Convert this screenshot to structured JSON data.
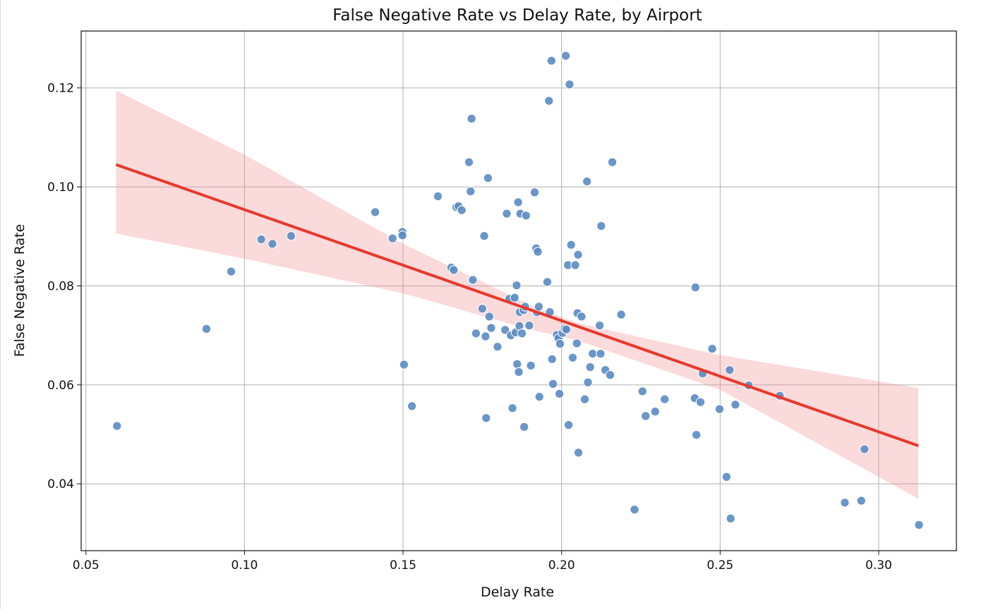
{
  "chart_data": {
    "type": "scatter",
    "title": "False Negative Rate vs Delay Rate, by Airport",
    "xlabel": "Delay Rate",
    "ylabel": "False Negative Rate",
    "xlim": [
      0.0485,
      0.3245
    ],
    "ylim": [
      0.0265,
      0.1315
    ],
    "xticks": [
      0.05,
      0.1,
      0.15,
      0.2,
      0.25,
      0.3
    ],
    "xtick_labels": [
      "0.05",
      "0.10",
      "0.15",
      "0.20",
      "0.25",
      "0.30"
    ],
    "yticks": [
      0.04,
      0.06,
      0.08,
      0.1,
      0.12
    ],
    "ytick_labels": [
      "0.04",
      "0.06",
      "0.08",
      "0.10",
      "0.12"
    ],
    "grid": true,
    "colors": {
      "points": "#5a8bc2",
      "point_edge": "#ffffff",
      "regression": "#e8392c",
      "band": "#f08c8c"
    },
    "regression": {
      "x": [
        0.0595,
        0.3125
      ],
      "y": [
        0.1045,
        0.0477
      ],
      "ci_upper": [
        0.1195,
        0.0594
      ],
      "ci_lower": [
        0.0906,
        0.037
      ],
      "band_x": [
        0.0595,
        0.1,
        0.15,
        0.19,
        0.205,
        0.25,
        0.3125
      ],
      "band_upper": [
        0.1195,
        0.1065,
        0.0885,
        0.0762,
        0.0725,
        0.066,
        0.0594
      ],
      "band_lower": [
        0.0906,
        0.0855,
        0.0785,
        0.0712,
        0.069,
        0.059,
        0.037
      ]
    },
    "points": [
      {
        "x": 0.0598,
        "y": 0.0517
      },
      {
        "x": 0.088,
        "y": 0.0713
      },
      {
        "x": 0.0958,
        "y": 0.0829
      },
      {
        "x": 0.1053,
        "y": 0.0894
      },
      {
        "x": 0.1088,
        "y": 0.0885
      },
      {
        "x": 0.1147,
        "y": 0.0901
      },
      {
        "x": 0.1412,
        "y": 0.0949
      },
      {
        "x": 0.1467,
        "y": 0.0896
      },
      {
        "x": 0.1498,
        "y": 0.0909
      },
      {
        "x": 0.1498,
        "y": 0.0902
      },
      {
        "x": 0.1503,
        "y": 0.0641
      },
      {
        "x": 0.1528,
        "y": 0.0557
      },
      {
        "x": 0.161,
        "y": 0.0981
      },
      {
        "x": 0.1652,
        "y": 0.0837
      },
      {
        "x": 0.166,
        "y": 0.0832
      },
      {
        "x": 0.1668,
        "y": 0.0959
      },
      {
        "x": 0.1675,
        "y": 0.0961
      },
      {
        "x": 0.1685,
        "y": 0.0953
      },
      {
        "x": 0.1708,
        "y": 0.105
      },
      {
        "x": 0.1713,
        "y": 0.0991
      },
      {
        "x": 0.1716,
        "y": 0.1138
      },
      {
        "x": 0.172,
        "y": 0.0812
      },
      {
        "x": 0.173,
        "y": 0.0704
      },
      {
        "x": 0.175,
        "y": 0.0754
      },
      {
        "x": 0.1756,
        "y": 0.0901
      },
      {
        "x": 0.176,
        "y": 0.0698
      },
      {
        "x": 0.1762,
        "y": 0.0533
      },
      {
        "x": 0.1768,
        "y": 0.1018
      },
      {
        "x": 0.1772,
        "y": 0.0738
      },
      {
        "x": 0.1778,
        "y": 0.0715
      },
      {
        "x": 0.1798,
        "y": 0.0677
      },
      {
        "x": 0.1822,
        "y": 0.0711
      },
      {
        "x": 0.1827,
        "y": 0.0946
      },
      {
        "x": 0.1835,
        "y": 0.0774
      },
      {
        "x": 0.184,
        "y": 0.07
      },
      {
        "x": 0.1845,
        "y": 0.0553
      },
      {
        "x": 0.1852,
        "y": 0.0776
      },
      {
        "x": 0.1855,
        "y": 0.0706
      },
      {
        "x": 0.1858,
        "y": 0.0801
      },
      {
        "x": 0.186,
        "y": 0.0642
      },
      {
        "x": 0.1863,
        "y": 0.0969
      },
      {
        "x": 0.1865,
        "y": 0.0626
      },
      {
        "x": 0.1867,
        "y": 0.0719
      },
      {
        "x": 0.1868,
        "y": 0.0747
      },
      {
        "x": 0.187,
        "y": 0.0946
      },
      {
        "x": 0.1875,
        "y": 0.0704
      },
      {
        "x": 0.188,
        "y": 0.0751
      },
      {
        "x": 0.1882,
        "y": 0.0515
      },
      {
        "x": 0.1885,
        "y": 0.0758
      },
      {
        "x": 0.1888,
        "y": 0.0942
      },
      {
        "x": 0.1898,
        "y": 0.072
      },
      {
        "x": 0.1903,
        "y": 0.0639
      },
      {
        "x": 0.1915,
        "y": 0.0989
      },
      {
        "x": 0.192,
        "y": 0.0876
      },
      {
        "x": 0.1922,
        "y": 0.0747
      },
      {
        "x": 0.1925,
        "y": 0.0869
      },
      {
        "x": 0.1928,
        "y": 0.0758
      },
      {
        "x": 0.193,
        "y": 0.0576
      },
      {
        "x": 0.1955,
        "y": 0.0808
      },
      {
        "x": 0.196,
        "y": 0.1174
      },
      {
        "x": 0.1963,
        "y": 0.0747
      },
      {
        "x": 0.1968,
        "y": 0.1255
      },
      {
        "x": 0.197,
        "y": 0.0652
      },
      {
        "x": 0.1973,
        "y": 0.0602
      },
      {
        "x": 0.1985,
        "y": 0.0701
      },
      {
        "x": 0.199,
        "y": 0.0694
      },
      {
        "x": 0.1993,
        "y": 0.0582
      },
      {
        "x": 0.1995,
        "y": 0.0683
      },
      {
        "x": 0.2003,
        "y": 0.0705
      },
      {
        "x": 0.201,
        "y": 0.0714
      },
      {
        "x": 0.2013,
        "y": 0.1265
      },
      {
        "x": 0.2015,
        "y": 0.0712
      },
      {
        "x": 0.202,
        "y": 0.0842
      },
      {
        "x": 0.2022,
        "y": 0.0519
      },
      {
        "x": 0.2025,
        "y": 0.1207
      },
      {
        "x": 0.203,
        "y": 0.0883
      },
      {
        "x": 0.2035,
        "y": 0.0655
      },
      {
        "x": 0.2043,
        "y": 0.0842
      },
      {
        "x": 0.2048,
        "y": 0.0684
      },
      {
        "x": 0.205,
        "y": 0.0745
      },
      {
        "x": 0.2052,
        "y": 0.0863
      },
      {
        "x": 0.2053,
        "y": 0.0463
      },
      {
        "x": 0.2063,
        "y": 0.0738
      },
      {
        "x": 0.2073,
        "y": 0.0571
      },
      {
        "x": 0.208,
        "y": 0.1011
      },
      {
        "x": 0.2083,
        "y": 0.0605
      },
      {
        "x": 0.209,
        "y": 0.0636
      },
      {
        "x": 0.2098,
        "y": 0.0663
      },
      {
        "x": 0.212,
        "y": 0.072
      },
      {
        "x": 0.2123,
        "y": 0.0663
      },
      {
        "x": 0.2125,
        "y": 0.0921
      },
      {
        "x": 0.2138,
        "y": 0.063
      },
      {
        "x": 0.2153,
        "y": 0.062
      },
      {
        "x": 0.216,
        "y": 0.105
      },
      {
        "x": 0.2188,
        "y": 0.0742
      },
      {
        "x": 0.223,
        "y": 0.0348
      },
      {
        "x": 0.2255,
        "y": 0.0587
      },
      {
        "x": 0.2265,
        "y": 0.0537
      },
      {
        "x": 0.2295,
        "y": 0.0546
      },
      {
        "x": 0.2325,
        "y": 0.0571
      },
      {
        "x": 0.242,
        "y": 0.0573
      },
      {
        "x": 0.2422,
        "y": 0.0797
      },
      {
        "x": 0.2425,
        "y": 0.0499
      },
      {
        "x": 0.2438,
        "y": 0.0565
      },
      {
        "x": 0.2445,
        "y": 0.0623
      },
      {
        "x": 0.2475,
        "y": 0.0673
      },
      {
        "x": 0.2498,
        "y": 0.0551
      },
      {
        "x": 0.252,
        "y": 0.0414
      },
      {
        "x": 0.253,
        "y": 0.063
      },
      {
        "x": 0.2533,
        "y": 0.033
      },
      {
        "x": 0.2548,
        "y": 0.056
      },
      {
        "x": 0.259,
        "y": 0.0599
      },
      {
        "x": 0.2688,
        "y": 0.0578
      },
      {
        "x": 0.2893,
        "y": 0.0362
      },
      {
        "x": 0.2945,
        "y": 0.0366
      },
      {
        "x": 0.2955,
        "y": 0.047
      },
      {
        "x": 0.3127,
        "y": 0.0317
      }
    ]
  }
}
